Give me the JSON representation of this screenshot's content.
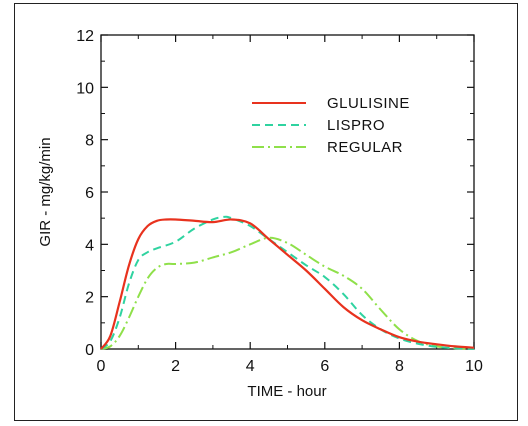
{
  "chart_data": {
    "type": "line",
    "xlabel": "TIME - hour",
    "ylabel": "GIR - mg/kg/min",
    "xlim": [
      0,
      10
    ],
    "ylim": [
      0,
      12
    ],
    "xticks": [
      0,
      2,
      4,
      6,
      8,
      10
    ],
    "yticks": [
      0,
      2,
      4,
      6,
      8,
      10,
      12
    ],
    "legend_position": "top-right",
    "series": [
      {
        "name": "GLULISINE",
        "color": "#e8321e",
        "style": "solid",
        "x": [
          0,
          0.25,
          0.5,
          0.75,
          1.0,
          1.25,
          1.5,
          1.75,
          2.0,
          2.5,
          3.0,
          3.5,
          4.0,
          4.5,
          5.0,
          5.5,
          6.0,
          6.5,
          7.0,
          7.5,
          8.0,
          8.5,
          9.0,
          9.5,
          10.0
        ],
        "y": [
          0,
          0.5,
          1.8,
          3.2,
          4.2,
          4.7,
          4.9,
          4.95,
          4.95,
          4.9,
          4.85,
          4.95,
          4.8,
          4.2,
          3.6,
          3.0,
          2.3,
          1.6,
          1.1,
          0.75,
          0.45,
          0.28,
          0.18,
          0.1,
          0.05
        ]
      },
      {
        "name": "LISPRO",
        "color": "#2fd3a0",
        "style": "dashed",
        "x": [
          0,
          0.25,
          0.5,
          0.75,
          1.0,
          1.25,
          1.5,
          2.0,
          2.5,
          3.0,
          3.3,
          3.5,
          4.0,
          4.5,
          5.0,
          5.5,
          6.0,
          6.5,
          7.0,
          7.5,
          8.0,
          8.5,
          9.0,
          9.5,
          10.0
        ],
        "y": [
          0,
          0.3,
          1.2,
          2.5,
          3.4,
          3.7,
          3.85,
          4.1,
          4.6,
          4.95,
          5.05,
          5.0,
          4.7,
          4.2,
          3.7,
          3.2,
          2.75,
          2.1,
          1.3,
          0.75,
          0.4,
          0.2,
          0.08,
          0.03,
          0.0
        ]
      },
      {
        "name": "REGULAR",
        "color": "#8fe04a",
        "style": "dashdot",
        "x": [
          0,
          0.25,
          0.5,
          0.75,
          1.0,
          1.25,
          1.5,
          1.75,
          2.0,
          2.5,
          3.0,
          3.5,
          4.0,
          4.5,
          5.0,
          5.5,
          6.0,
          6.5,
          7.0,
          7.5,
          8.0,
          8.5,
          9.0,
          9.5,
          10.0
        ],
        "y": [
          0,
          0.1,
          0.5,
          1.2,
          2.0,
          2.7,
          3.1,
          3.25,
          3.25,
          3.3,
          3.5,
          3.7,
          4.0,
          4.25,
          4.05,
          3.6,
          3.15,
          2.8,
          2.3,
          1.5,
          0.75,
          0.3,
          0.1,
          0.03,
          0.0
        ]
      }
    ]
  }
}
